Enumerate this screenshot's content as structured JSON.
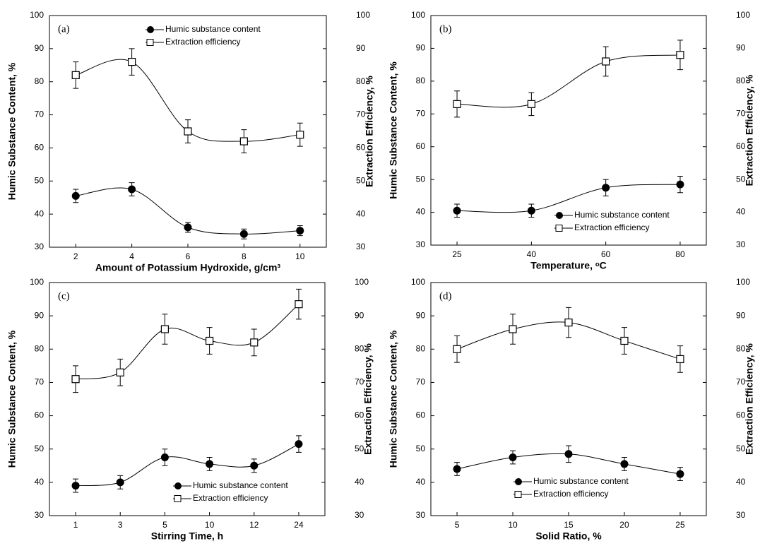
{
  "chart_data": [
    {
      "type": "line",
      "panel_label": "(a)",
      "xlabel": "Amount of Potassium Hydroxide, g/cm³",
      "ylabel": "Humic Substance Content, %",
      "y2label": "Extraction Efficiency, %",
      "categories": [
        "2",
        "4",
        "6",
        "8",
        "10"
      ],
      "ylim": [
        30,
        100
      ],
      "yticks": [
        30,
        40,
        50,
        60,
        70,
        80,
        90,
        100
      ],
      "y2lim": [
        30,
        100
      ],
      "y2ticks": [
        30,
        40,
        50,
        60,
        70,
        80,
        90,
        100
      ],
      "legend": "upper center",
      "series": [
        {
          "name": "Humic substance content",
          "marker": "circle",
          "color": "#000000",
          "values": [
            45.5,
            47.5,
            36,
            34,
            35
          ],
          "errors": [
            2,
            2,
            1.5,
            1.5,
            1.5
          ]
        },
        {
          "name": "Extraction efficiency",
          "marker": "square",
          "color": "#000000",
          "axis": "y2",
          "values": [
            82,
            86,
            65,
            62,
            64
          ],
          "errors": [
            4,
            4,
            3.5,
            3.5,
            3.5
          ]
        }
      ]
    },
    {
      "type": "line",
      "panel_label": "(b)",
      "xlabel": "Temperature, ᵒC",
      "ylabel": "Humic Substance Content, %",
      "y2label": "Extraction Efficiency, %",
      "categories": [
        "25",
        "40",
        "60",
        "80"
      ],
      "ylim": [
        30,
        100
      ],
      "yticks": [
        30,
        40,
        50,
        60,
        70,
        80,
        90,
        100
      ],
      "y2lim": [
        30,
        100
      ],
      "y2ticks": [
        30,
        40,
        50,
        60,
        70,
        80,
        90,
        100
      ],
      "legend": "lower right",
      "series": [
        {
          "name": "Humic substance content",
          "marker": "circle",
          "color": "#000000",
          "values": [
            40.5,
            40.5,
            47.5,
            48.5
          ],
          "errors": [
            2,
            2,
            2.5,
            2.5
          ]
        },
        {
          "name": "Extraction efficiency",
          "marker": "square",
          "color": "#000000",
          "axis": "y2",
          "values": [
            73,
            73,
            86,
            88
          ],
          "errors": [
            4,
            3.5,
            4.5,
            4.5
          ]
        }
      ]
    },
    {
      "type": "line",
      "panel_label": "(c)",
      "xlabel": "Stirring Time, h",
      "ylabel": "Humic Substance Content, %",
      "y2label": "Extraction Efficiency, %",
      "categories": [
        "1",
        "3",
        "5",
        "10",
        "12",
        "24"
      ],
      "ylim": [
        30,
        100
      ],
      "yticks": [
        30,
        40,
        50,
        60,
        70,
        80,
        90,
        100
      ],
      "y2lim": [
        30,
        100
      ],
      "y2ticks": [
        30,
        40,
        50,
        60,
        70,
        80,
        90,
        100
      ],
      "legend": "lower right",
      "series": [
        {
          "name": "Humic substance content",
          "marker": "circle",
          "color": "#000000",
          "values": [
            39,
            40,
            47.5,
            45.5,
            45,
            51.5
          ],
          "errors": [
            2,
            2,
            2.5,
            2,
            2,
            2.5
          ]
        },
        {
          "name": "Extraction efficiency",
          "marker": "square",
          "color": "#000000",
          "axis": "y2",
          "values": [
            71,
            73,
            86,
            82.5,
            82,
            93.5
          ],
          "errors": [
            4,
            4,
            4.5,
            4,
            4,
            4.5
          ]
        }
      ]
    },
    {
      "type": "line",
      "panel_label": "(d)",
      "xlabel": "Solid Ratio, %",
      "ylabel": "Humic Substance Content, %",
      "y2label": "Extraction Efficiency, %",
      "categories": [
        "5",
        "10",
        "15",
        "20",
        "25"
      ],
      "ylim": [
        30,
        100
      ],
      "yticks": [
        30,
        40,
        50,
        60,
        70,
        80,
        90,
        100
      ],
      "y2lim": [
        30,
        100
      ],
      "y2ticks": [
        30,
        40,
        50,
        60,
        70,
        80,
        90,
        100
      ],
      "legend": "lower center",
      "series": [
        {
          "name": "Humic substance content",
          "marker": "circle",
          "color": "#000000",
          "values": [
            44,
            47.5,
            48.5,
            45.5,
            42.5
          ],
          "errors": [
            2,
            2,
            2.5,
            2,
            2
          ]
        },
        {
          "name": "Extraction efficiency",
          "marker": "square",
          "color": "#000000",
          "axis": "y2",
          "values": [
            80,
            86,
            88,
            82.5,
            77
          ],
          "errors": [
            4,
            4.5,
            4.5,
            4,
            4
          ]
        }
      ]
    }
  ]
}
